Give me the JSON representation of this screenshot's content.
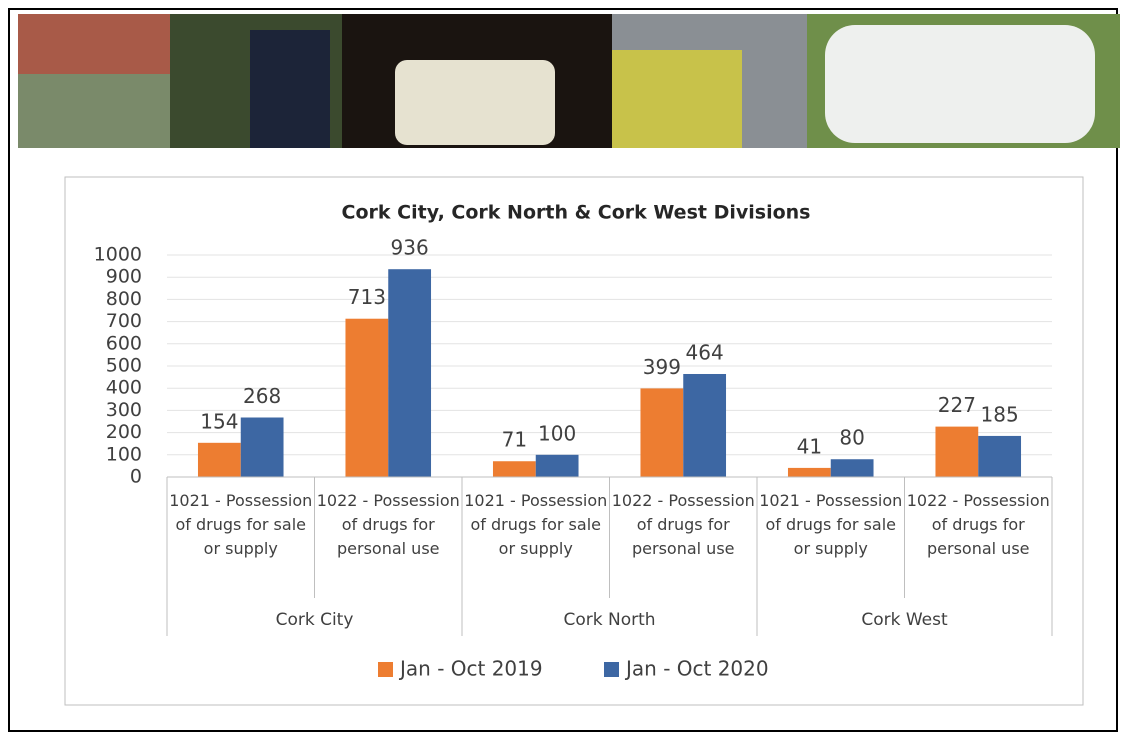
{
  "chart_data": {
    "type": "bar",
    "title": "Cork City, Cork North & Cork West Divisions",
    "categories": [
      "1021 - Possession of drugs for sale or supply",
      "1022 - Possession of drugs for personal use",
      "1021 - Possession of drugs for sale or supply",
      "1022 - Possession of drugs for personal use",
      "1021 - Possession of drugs for sale or supply",
      "1022 - Possession of drugs for personal use"
    ],
    "groups": [
      "Cork City",
      "Cork North",
      "Cork West"
    ],
    "series": [
      {
        "name": "Jan - Oct 2019",
        "color": "#ed7d31",
        "values": [
          154,
          713,
          71,
          399,
          41,
          227
        ]
      },
      {
        "name": "Jan - Oct 2020",
        "color": "#3d67a3",
        "values": [
          268,
          936,
          100,
          464,
          80,
          185
        ]
      }
    ],
    "ylim": [
      0,
      1000
    ],
    "yticks": [
      0,
      100,
      200,
      300,
      400,
      500,
      600,
      700,
      800,
      900,
      1000
    ],
    "grid": true
  }
}
